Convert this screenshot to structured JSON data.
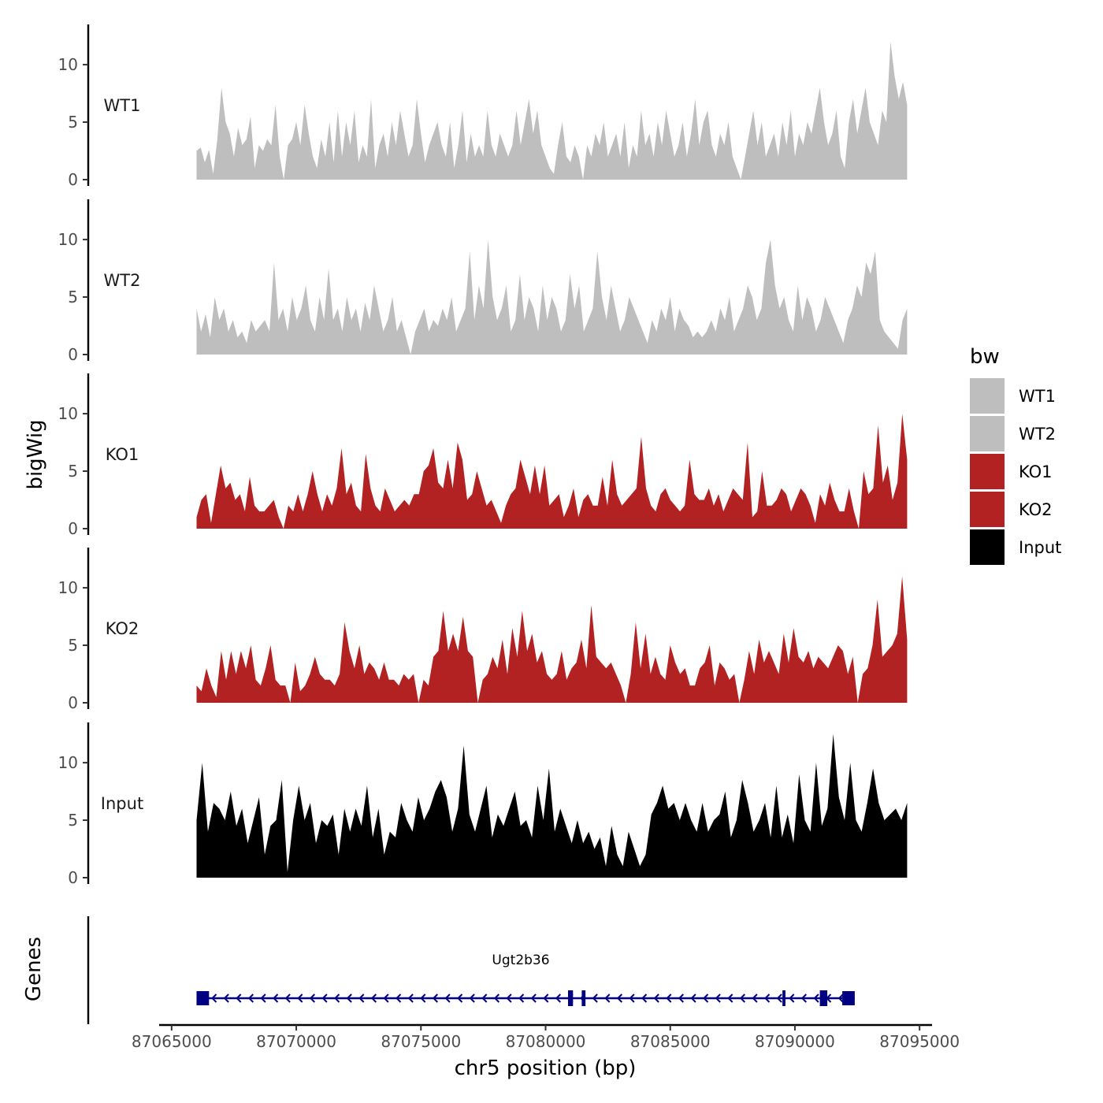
{
  "chart_data": {
    "type": "area",
    "title": "",
    "ylabel": "bigWig",
    "xlabel": "chr5 position (bp)",
    "genes_label": "Genes",
    "x_range": [
      87066000,
      87094500
    ],
    "xlim": [
      87064500,
      87095500
    ],
    "ylim": [
      0,
      13.5
    ],
    "y_ticks": [
      0,
      5,
      10
    ],
    "x_ticks": [
      87065000,
      87070000,
      87075000,
      87080000,
      87085000,
      87090000,
      87095000
    ],
    "x_tick_labels": [
      "87065000",
      "87070000",
      "87075000",
      "87080000",
      "87085000",
      "87090000",
      "87095000"
    ],
    "legend": {
      "title": "bw",
      "position": "right",
      "entries": [
        {
          "label": "WT1",
          "color": "#bebebe"
        },
        {
          "label": "WT2",
          "color": "#bebebe"
        },
        {
          "label": "KO1",
          "color": "#b22222"
        },
        {
          "label": "KO2",
          "color": "#b22222"
        },
        {
          "label": "Input",
          "color": "#000000"
        }
      ]
    },
    "series": [
      {
        "name": "WT1",
        "color": "#bebebe",
        "values": [
          2.5,
          2.8,
          1.5,
          2.6,
          0.5,
          3.5,
          8,
          5,
          4,
          2,
          4.5,
          3,
          3.5,
          5.5,
          1,
          3,
          2.5,
          3.5,
          3,
          6.5,
          2,
          0,
          3,
          3.5,
          5,
          3,
          6.5,
          4,
          2,
          1,
          3.5,
          2,
          5,
          1.5,
          6,
          2,
          5,
          3,
          6,
          1.5,
          3,
          2,
          7,
          1,
          3,
          4,
          2,
          5,
          3,
          6,
          4,
          2,
          3,
          7,
          4,
          1.5,
          3,
          4,
          5,
          3,
          2,
          5,
          1,
          3,
          6,
          1.5,
          4,
          2,
          3,
          2,
          6,
          3,
          2,
          4,
          3,
          2,
          3,
          6,
          3,
          5,
          7,
          4,
          6,
          3,
          2,
          1,
          0.5,
          3,
          5,
          2,
          1.5,
          3,
          2,
          0,
          3,
          2,
          4,
          3,
          5,
          2,
          3,
          4,
          2,
          5,
          1,
          3,
          2,
          6,
          3,
          4,
          2,
          5,
          3,
          6,
          4,
          2,
          3,
          5,
          2,
          4,
          7,
          3,
          5,
          6,
          3,
          2,
          4,
          3,
          5,
          2,
          1,
          0,
          2,
          4,
          6,
          3,
          5,
          2,
          3,
          4,
          2,
          5,
          3,
          6,
          2,
          4,
          3,
          5,
          4,
          6,
          8,
          5,
          3,
          4,
          6,
          2,
          1,
          5,
          7,
          4,
          6,
          8,
          5,
          4,
          3,
          6,
          5,
          12,
          9,
          7,
          8.5,
          6.5
        ]
      },
      {
        "name": "WT2",
        "color": "#bebebe",
        "values": [
          4,
          2,
          3.5,
          1.5,
          5,
          3,
          4,
          2,
          3,
          1.5,
          2,
          1,
          3,
          2,
          2.5,
          3,
          2,
          8,
          3,
          4,
          2,
          5,
          3,
          4,
          6,
          3,
          2,
          5,
          3,
          7.5,
          3,
          4,
          2,
          5,
          3,
          4,
          2,
          4.5,
          3,
          6,
          4,
          2,
          3,
          5,
          2,
          3,
          1.5,
          0,
          2,
          3,
          4,
          2,
          3,
          2.5,
          4,
          3,
          5,
          2,
          3,
          4,
          9,
          3,
          6,
          4,
          10,
          5,
          3,
          4,
          6,
          2,
          3,
          7,
          3,
          5,
          4,
          2,
          6,
          3,
          5,
          4,
          2,
          3,
          7,
          4,
          6,
          2,
          3,
          4,
          9,
          5,
          3,
          6,
          4,
          2,
          3,
          5,
          4,
          3,
          2,
          1,
          3,
          2,
          4,
          3,
          5,
          2,
          4,
          3,
          2.5,
          1.5,
          2,
          1.5,
          2,
          3,
          2,
          4,
          3,
          5,
          2,
          3,
          4,
          6,
          5,
          3,
          4,
          8,
          10,
          6,
          4,
          5,
          3,
          2,
          6,
          3,
          5,
          4,
          2,
          3,
          5,
          4,
          3,
          2,
          1,
          3,
          4,
          6,
          5,
          8,
          7,
          9,
          3,
          2,
          1.5,
          1,
          0.5,
          3,
          4
        ]
      },
      {
        "name": "KO1",
        "color": "#b22222",
        "values": [
          1,
          2.5,
          3,
          0.5,
          3,
          5.5,
          3.5,
          4,
          2.5,
          3,
          1.5,
          4.5,
          2,
          1.5,
          1.5,
          2,
          2.5,
          1,
          0,
          2,
          1.5,
          3,
          1.5,
          3,
          5,
          3,
          1.5,
          3,
          2,
          3.5,
          7,
          3,
          4,
          2,
          1.5,
          6.5,
          3.5,
          2,
          1.5,
          3.5,
          2.5,
          1.5,
          2,
          2.5,
          2,
          3,
          3,
          5,
          5.5,
          7,
          4,
          3.5,
          6,
          3.5,
          7.5,
          6,
          2.5,
          3,
          5,
          3.5,
          2,
          2.5,
          1.5,
          0.5,
          2,
          3,
          3.5,
          6,
          4.5,
          3,
          5.5,
          3,
          5.5,
          2,
          2.5,
          3,
          1,
          2,
          3.5,
          1,
          2.5,
          3,
          2,
          2,
          4.5,
          2,
          6,
          3,
          2,
          2.5,
          3,
          3.5,
          8,
          3.5,
          2,
          1.5,
          3,
          3.5,
          2.5,
          2,
          1.5,
          2,
          6,
          3,
          2.5,
          2.5,
          3.5,
          2,
          3,
          1.5,
          2.5,
          3.5,
          3,
          2.5,
          7.5,
          1,
          1.5,
          5,
          2,
          2,
          2.5,
          3.5,
          3,
          1.5,
          2.5,
          3.5,
          3,
          2,
          0.5,
          3,
          2,
          4,
          2.5,
          1.5,
          1.5,
          3.5,
          1.5,
          0,
          5,
          3,
          3.5,
          9,
          4,
          5.5,
          2.5,
          4,
          10,
          6
        ]
      },
      {
        "name": "KO2",
        "color": "#b22222",
        "values": [
          1.5,
          1,
          3,
          1.5,
          0.5,
          4.5,
          2,
          4.5,
          2.5,
          4.5,
          3,
          5,
          2,
          1.5,
          3,
          5,
          2,
          1.5,
          1.5,
          0,
          3.5,
          1,
          1.5,
          2.5,
          4,
          2.5,
          2,
          2,
          1.5,
          2.5,
          7,
          4.5,
          3,
          5,
          2.5,
          3.5,
          3,
          2,
          3.5,
          2,
          2,
          1.5,
          2.5,
          2,
          2.5,
          0,
          2,
          1.5,
          4,
          4.5,
          8,
          4.5,
          6,
          4.5,
          7.5,
          4.5,
          4,
          0,
          2,
          2.5,
          4,
          3,
          5.5,
          2.5,
          6.5,
          4,
          8,
          4.5,
          6,
          3.5,
          4.5,
          2.5,
          2,
          2.5,
          4.5,
          2,
          3,
          3.5,
          5.5,
          3,
          8.5,
          4,
          3.5,
          3,
          3.5,
          2.5,
          1.5,
          0,
          2.5,
          7,
          3,
          6,
          2.5,
          4,
          2.5,
          2,
          5,
          3.5,
          2.5,
          3,
          1.5,
          1.5,
          3,
          3.5,
          5,
          1.5,
          3.5,
          3,
          2,
          2.5,
          0,
          2,
          4.5,
          2.5,
          5.5,
          3.5,
          4.5,
          3.5,
          2.5,
          6,
          3.5,
          6.5,
          4,
          3.5,
          4.5,
          3,
          4,
          3.5,
          3,
          4,
          5,
          4.5,
          2.5,
          4,
          0,
          2.5,
          3,
          5,
          9,
          4,
          4.5,
          5,
          6,
          11,
          5.5
        ]
      },
      {
        "name": "Input",
        "color": "#000000",
        "values": [
          5,
          10,
          4,
          6.5,
          6,
          5,
          7.5,
          4.5,
          6,
          3,
          5,
          7,
          2,
          4.5,
          5,
          8.5,
          0.5,
          5,
          8,
          5,
          6.5,
          3,
          5,
          4.5,
          5.5,
          2,
          6,
          4,
          6,
          4.5,
          8,
          3.5,
          6,
          2,
          4,
          3.5,
          6.5,
          5,
          4,
          7,
          5,
          6,
          7.5,
          8.5,
          7,
          4,
          6,
          11.5,
          5.5,
          4,
          6,
          8,
          3.5,
          5.5,
          4.5,
          6,
          7.5,
          4.5,
          5,
          3.5,
          8,
          5,
          9.5,
          4,
          6,
          4.5,
          3,
          5,
          3,
          4,
          2.5,
          3.5,
          1,
          4.5,
          2,
          1,
          4,
          2.5,
          1,
          2,
          5.5,
          6.5,
          8,
          6,
          6.5,
          5,
          6.5,
          5,
          4,
          6.5,
          4,
          5,
          5.5,
          7.5,
          3.5,
          5,
          8.5,
          6.5,
          4,
          5,
          6.5,
          3.5,
          8,
          3.5,
          5.5,
          3,
          9,
          5,
          4,
          10,
          4.5,
          6,
          12.5,
          7,
          5,
          10,
          5,
          4,
          6.5,
          9.5,
          6.5,
          5,
          5.5,
          6,
          5,
          6.5
        ]
      }
    ],
    "gene": {
      "name": "Ugt2b36",
      "strand": "-",
      "start": 87066000,
      "end": 87092400,
      "exons": [
        [
          87066000,
          87066500
        ],
        [
          87080900,
          87081100
        ],
        [
          87081450,
          87081600
        ],
        [
          87089500,
          87089620
        ],
        [
          87091000,
          87091300
        ],
        [
          87091900,
          87092400
        ]
      ]
    }
  }
}
